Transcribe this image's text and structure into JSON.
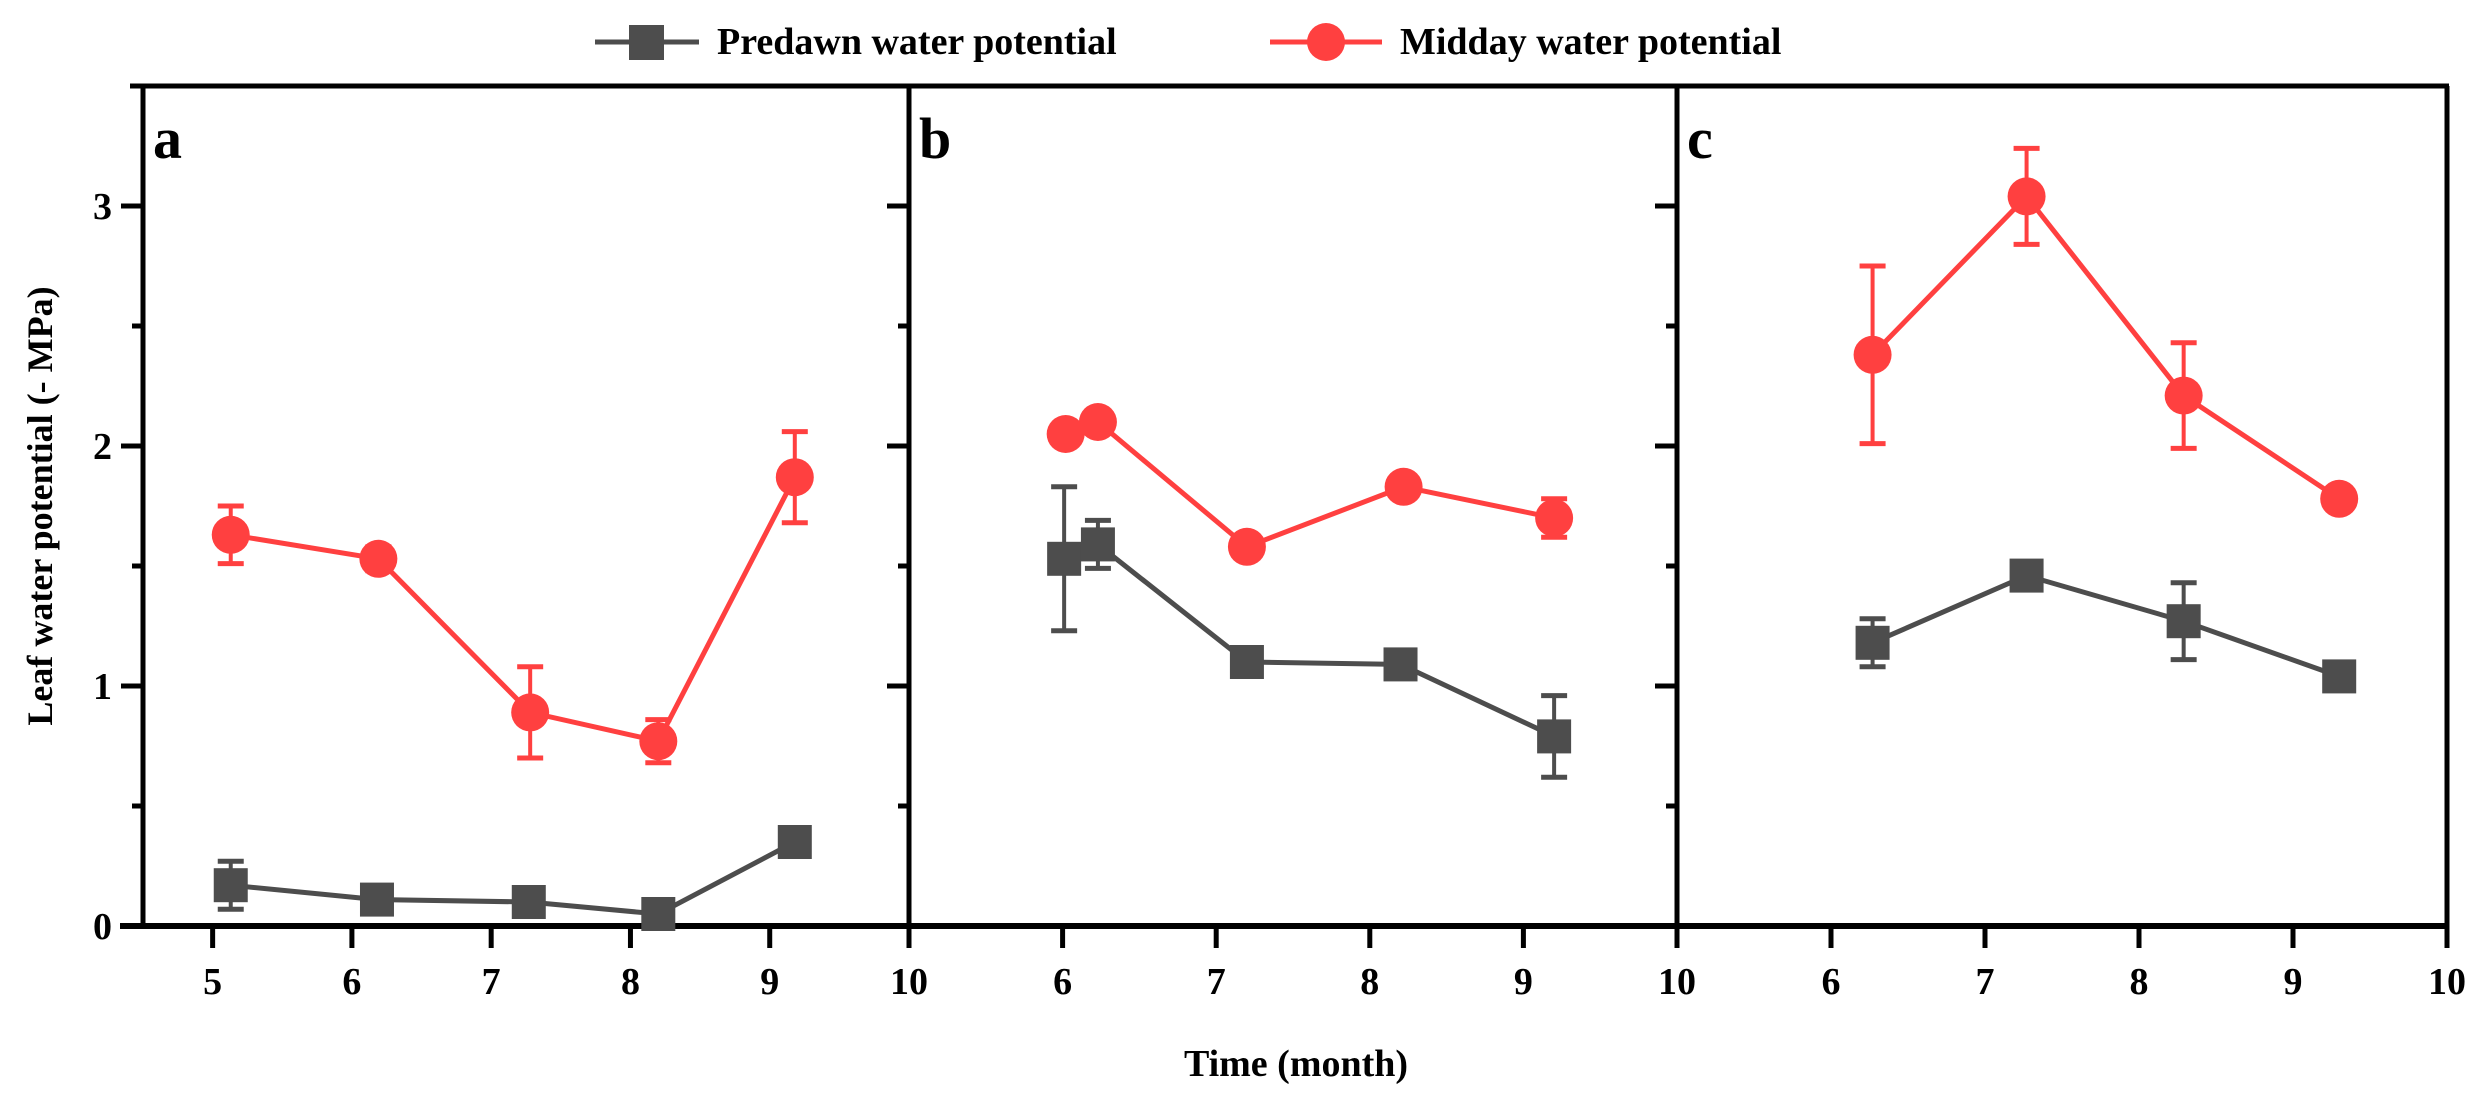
{
  "legend": {
    "predawn": "Predawn water potential",
    "midday": "Midday water potential"
  },
  "colors": {
    "predawn": "#4D4D4D",
    "midday": "#FF4040",
    "axis": "#000000"
  },
  "chart_data": {
    "type": "line",
    "xlabel": "Time (month)",
    "ylabel": "Leaf water potential (- MPa)",
    "ylim": [
      0,
      3.5
    ],
    "yticks": [
      "0",
      "1",
      "2",
      "3"
    ],
    "legend_position": "top-center",
    "panels": [
      {
        "label": "a",
        "xlim": [
          4.5,
          10
        ],
        "xticks": [
          "5",
          "6",
          "7",
          "8",
          "9",
          "10"
        ],
        "series": [
          {
            "name": "Predawn water potential",
            "marker": "square",
            "x": [
              5.13,
              6.18,
              7.27,
              8.2,
              9.18
            ],
            "y": [
              0.17,
              0.11,
              0.1,
              0.05,
              0.35
            ],
            "err": [
              0.1,
              0.04,
              0.04,
              0.03,
              0.05
            ]
          },
          {
            "name": "Midday water potential",
            "marker": "circle",
            "x": [
              5.13,
              6.19,
              7.28,
              8.2,
              9.18
            ],
            "y": [
              1.63,
              1.53,
              0.89,
              0.77,
              1.87
            ],
            "err": [
              0.12,
              0.05,
              0.19,
              0.09,
              0.19
            ]
          }
        ]
      },
      {
        "label": "b",
        "xlim": [
          5,
          10
        ],
        "xticks": [
          "6",
          "7",
          "8",
          "9",
          "10"
        ],
        "series": [
          {
            "name": "Predawn water potential",
            "marker": "square",
            "x": [
              6.01,
              6.23,
              7.2,
              8.2,
              9.2
            ],
            "y": [
              1.53,
              1.59,
              1.1,
              1.09,
              0.79
            ],
            "err": [
              0.3,
              0.1,
              0.03,
              0.03,
              0.17
            ]
          },
          {
            "name": "Midday water potential",
            "marker": "circle",
            "x": [
              6.02,
              6.23,
              7.2,
              8.22,
              9.2
            ],
            "y": [
              2.05,
              2.1,
              1.58,
              1.83,
              1.7
            ],
            "err": [
              0.03,
              0.03,
              0.04,
              0.04,
              0.08
            ]
          }
        ]
      },
      {
        "label": "c",
        "xlim": [
          5,
          10
        ],
        "xticks": [
          "6",
          "7",
          "8",
          "9",
          "10"
        ],
        "series": [
          {
            "name": "Predawn water potential",
            "marker": "square",
            "x": [
              6.27,
              7.27,
              8.29,
              9.3
            ],
            "y": [
              1.18,
              1.46,
              1.27,
              1.04
            ],
            "err": [
              0.1,
              0.03,
              0.16,
              0.05
            ]
          },
          {
            "name": "Midday water potential",
            "marker": "circle",
            "x": [
              6.27,
              7.27,
              8.29,
              9.3
            ],
            "y": [
              2.38,
              3.04,
              2.21,
              1.78
            ],
            "err": [
              0.37,
              0.2,
              0.22,
              0.03
            ]
          }
        ]
      }
    ]
  }
}
